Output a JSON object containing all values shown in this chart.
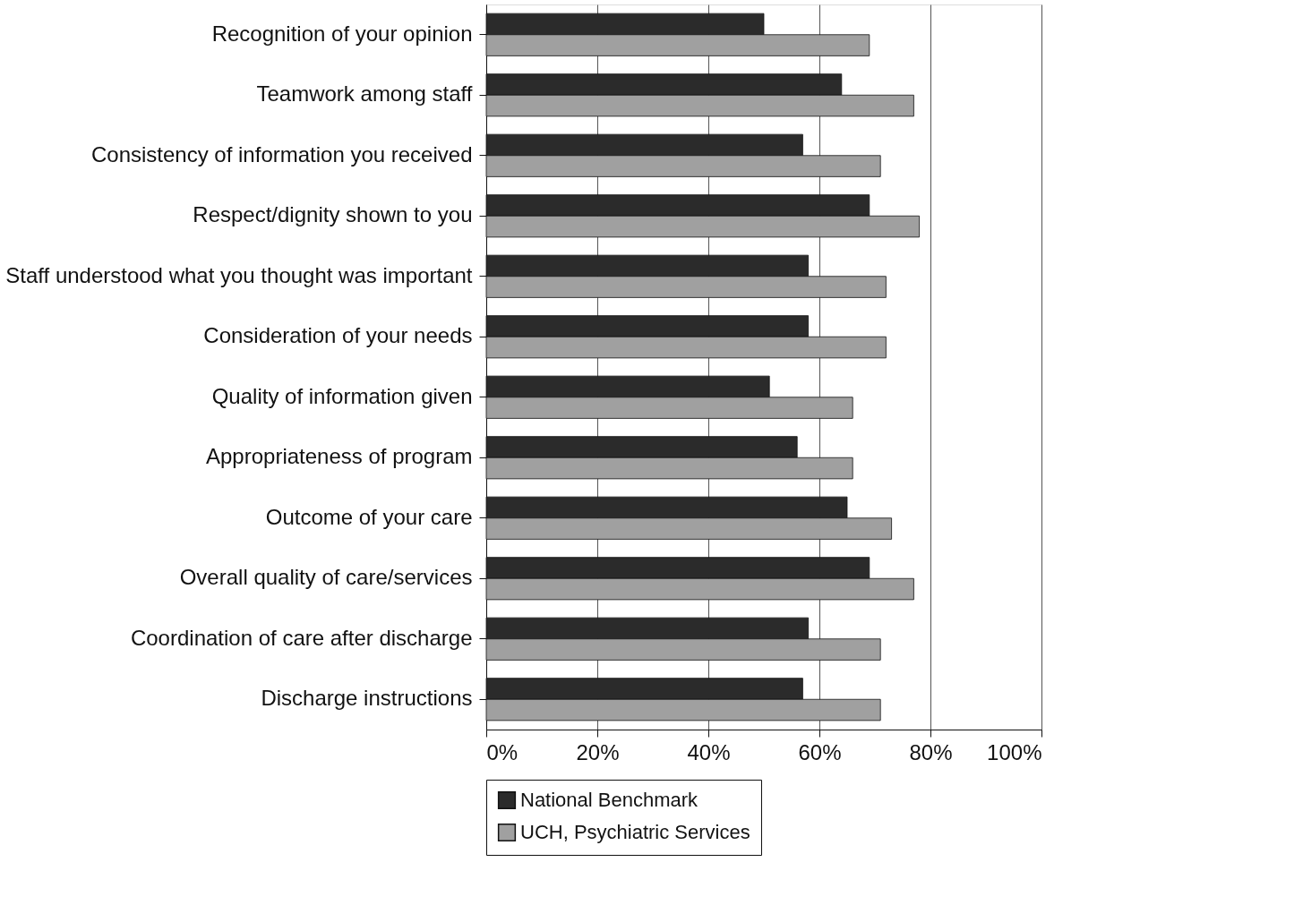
{
  "chart_data": {
    "type": "bar",
    "orientation": "horizontal",
    "categories": [
      "Recognition of your opinion",
      "Teamwork among staff",
      "Consistency of information you received",
      "Respect/dignity shown to you",
      "Staff understood what you thought was important",
      "Consideration of your needs",
      "Quality of information given",
      "Appropriateness of program",
      "Outcome of your care",
      "Overall quality of care/services",
      "Coordination of care after discharge",
      "Discharge instructions"
    ],
    "series": [
      {
        "name": "National Benchmark",
        "color": "#2b2b2b",
        "values": [
          50,
          64,
          57,
          69,
          58,
          58,
          51,
          56,
          65,
          69,
          58,
          57
        ]
      },
      {
        "name": "UCH, Psychiatric Services",
        "color": "#a0a0a0",
        "values": [
          69,
          77,
          71,
          78,
          72,
          72,
          66,
          66,
          73,
          77,
          71,
          71
        ]
      }
    ],
    "xlim": [
      0,
      100
    ],
    "xticks": [
      {
        "value": 0,
        "label": "0%"
      },
      {
        "value": 20,
        "label": "20%"
      },
      {
        "value": 40,
        "label": "40%"
      },
      {
        "value": 60,
        "label": "60%"
      },
      {
        "value": 80,
        "label": "80%"
      },
      {
        "value": 100,
        "label": "100%"
      }
    ],
    "grid": "x",
    "legend": "bottom"
  }
}
